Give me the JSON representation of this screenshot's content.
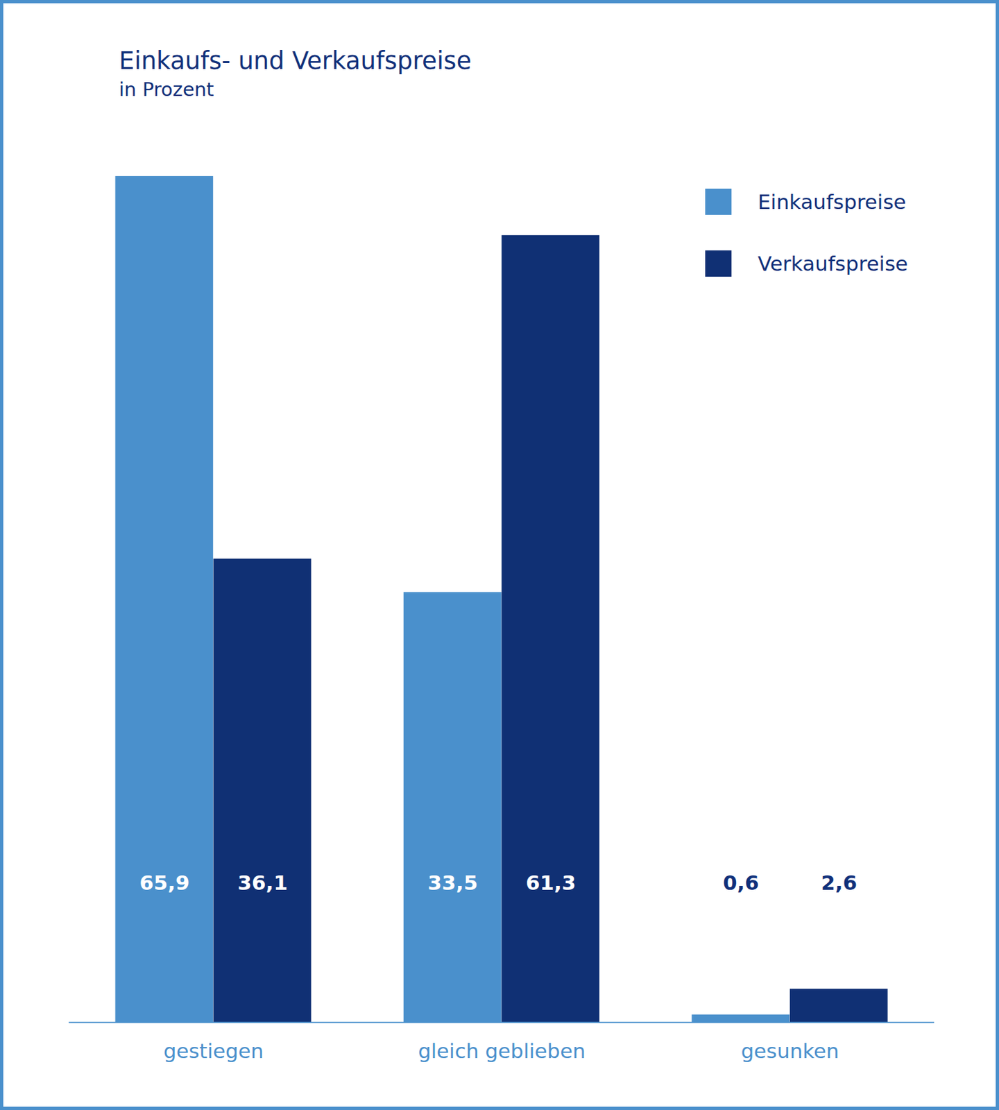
{
  "chart_data": {
    "type": "bar",
    "title": "Einkaufs- und Verkaufspreise",
    "subtitle": "in Prozent",
    "categories": [
      "gestiegen",
      "gleich geblieben",
      "gesunken"
    ],
    "series": [
      {
        "name": "Einkaufspreise",
        "color": "#4a90cc",
        "values": [
          65.9,
          33.5,
          0.6
        ],
        "value_labels": [
          "65,9",
          "33,5",
          "0,6"
        ]
      },
      {
        "name": "Verkaufspreise",
        "color": "#103074",
        "values": [
          36.1,
          61.3,
          2.6
        ],
        "value_labels": [
          "36,1",
          "61,3",
          "2,6"
        ]
      }
    ],
    "ylim": [
      0,
      70
    ],
    "data_labels": true,
    "tick_labels": "x",
    "legend": "top-right"
  }
}
